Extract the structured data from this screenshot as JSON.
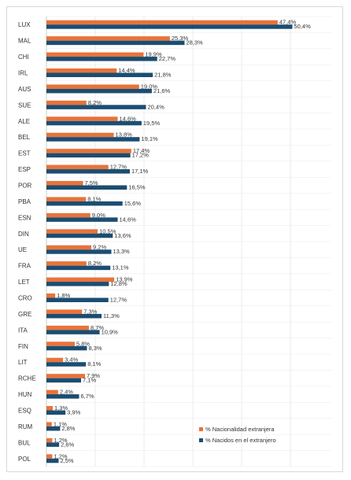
{
  "chart_data": {
    "type": "bar",
    "orientation": "horizontal",
    "categories": [
      "LUX",
      "MAL",
      "CHI",
      "IRL",
      "AUS",
      "SUE",
      "ALE",
      "BEL",
      "EST",
      "ESP",
      "POR",
      "PBA",
      "ESN",
      "DIN",
      "UE",
      "FRA",
      "LET",
      "CRO",
      "GRE",
      "ITA",
      "FIN",
      "LIT",
      "RCHE",
      "HUN",
      "ESQ",
      "RUM",
      "BUL",
      "POL"
    ],
    "series": [
      {
        "name": "% Nacionalidad extranjera",
        "color": "#e8733a",
        "values": [
          47.4,
          25.3,
          19.9,
          14.4,
          19.0,
          8.2,
          14.6,
          13.8,
          17.4,
          12.7,
          7.5,
          8.1,
          9.0,
          10.5,
          9.2,
          8.2,
          13.9,
          1.8,
          7.3,
          8.7,
          5.8,
          3.4,
          7.9,
          2.4,
          1.3,
          1.1,
          1.2,
          1.2
        ],
        "labels": [
          "47,4%",
          "25,3%",
          "19,9%",
          "14,4%",
          "19,0%",
          "8,2%",
          "14,6%",
          "13,8%",
          "17,4%",
          "12,7%",
          "7,5%",
          "8,1%",
          "9,0%",
          "10,5%",
          "9,2%",
          "8,2%",
          "13,9%",
          "1,8%",
          "7,3%",
          "8,7%",
          "5,8%",
          "3,4%",
          "7,9%",
          "2,4%",
          "1,3%",
          "1,1%",
          "1,2%",
          "1,2%"
        ]
      },
      {
        "name": "% Nacidos en el extranjero",
        "color": "#1b4d72",
        "values": [
          50.4,
          28.3,
          22.7,
          21.8,
          21.6,
          20.4,
          19.5,
          19.1,
          17.2,
          17.1,
          16.5,
          15.6,
          14.6,
          13.6,
          13.3,
          13.1,
          12.8,
          12.7,
          11.3,
          10.9,
          8.3,
          8.1,
          7.1,
          6.7,
          3.9,
          2.8,
          2.6,
          2.5
        ],
        "labels": [
          "50,4%",
          "28,3%",
          "22,7%",
          "21,8%",
          "21,6%",
          "20,4%",
          "19,5%",
          "19,1%",
          "17,2%",
          "17,1%",
          "16,5%",
          "15,6%",
          "14,6%",
          "13,6%",
          "13,3%",
          "13,1%",
          "12,8%",
          "12,7%",
          "11,3%",
          "10,9%",
          "8,3%",
          "8,1%",
          "7,1%",
          "6,7%",
          "3,9%",
          "2,8%",
          "2,6%",
          "2,5%"
        ]
      }
    ],
    "xlim": [
      0,
      55
    ],
    "grid": true,
    "legend_position": "bottom-right"
  }
}
